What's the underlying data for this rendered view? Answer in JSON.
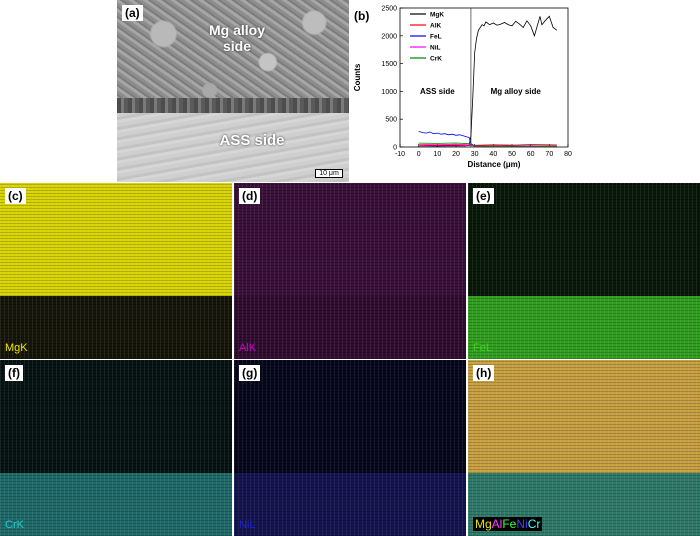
{
  "panel_a": {
    "tag": "(a)",
    "mg_label_line1": "Mg alloy",
    "mg_label_line2": "side",
    "ass_label": "ASS side",
    "scale_bar": "10 μm"
  },
  "chart_data": {
    "type": "line",
    "tag": "(b)",
    "xlabel": "Distance (μm)",
    "ylabel": "Counts",
    "xlim": [
      -10,
      80
    ],
    "ylim": [
      0,
      2500
    ],
    "xticks": [
      -10,
      0,
      10,
      20,
      30,
      40,
      50,
      60,
      70,
      80
    ],
    "yticks": [
      0,
      500,
      1000,
      1500,
      2000,
      2500
    ],
    "interface_x": 28,
    "annotations": [
      {
        "text": "ASS side",
        "x": 10,
        "y": 950
      },
      {
        "text": "Mg alloy side",
        "x": 52,
        "y": 950
      }
    ],
    "legend_position": "top-left",
    "series": [
      {
        "name": "MgK",
        "color": "#000000",
        "x": [
          0,
          5,
          10,
          15,
          20,
          25,
          27,
          28,
          29,
          30,
          31,
          32,
          33,
          34,
          35,
          36,
          38,
          40,
          42,
          44,
          46,
          48,
          50,
          52,
          54,
          56,
          58,
          60,
          62,
          64,
          65,
          66,
          68,
          70,
          72,
          74
        ],
        "y": [
          20,
          22,
          18,
          20,
          21,
          19,
          30,
          200,
          900,
          1700,
          1950,
          2100,
          2150,
          2200,
          2180,
          2250,
          2200,
          2230,
          2190,
          2210,
          2240,
          2200,
          2180,
          2260,
          2210,
          2150,
          2270,
          2180,
          2000,
          2230,
          2350,
          2200,
          2280,
          2350,
          2150,
          2100
        ]
      },
      {
        "name": "AlK",
        "color": "#ff0000",
        "x": [
          0,
          10,
          20,
          27,
          30,
          40,
          50,
          60,
          70,
          74
        ],
        "y": [
          25,
          30,
          28,
          26,
          30,
          40,
          35,
          45,
          40,
          38
        ]
      },
      {
        "name": "FeL",
        "color": "#0000ff",
        "x": [
          0,
          2,
          4,
          6,
          8,
          10,
          12,
          14,
          16,
          18,
          20,
          22,
          24,
          26,
          27,
          28,
          30,
          40,
          50,
          60,
          70,
          74
        ],
        "y": [
          280,
          260,
          250,
          270,
          240,
          250,
          230,
          240,
          220,
          230,
          210,
          220,
          200,
          180,
          170,
          60,
          20,
          18,
          20,
          22,
          18,
          20
        ]
      },
      {
        "name": "NiL",
        "color": "#ff00ff",
        "x": [
          0,
          10,
          20,
          27,
          30,
          40,
          50,
          60,
          70,
          74
        ],
        "y": [
          45,
          42,
          48,
          40,
          15,
          12,
          14,
          13,
          12,
          14
        ]
      },
      {
        "name": "CrK",
        "color": "#008000",
        "x": [
          0,
          10,
          20,
          27,
          30,
          40,
          50,
          60,
          70,
          74
        ],
        "y": [
          70,
          65,
          72,
          60,
          20,
          15,
          16,
          18,
          15,
          17
        ]
      }
    ]
  },
  "maps": [
    {
      "tag": "(c)",
      "caption": "MgK",
      "caption_color": "#f2e600",
      "top_color": "#d9d400",
      "bottom_color": "#151509",
      "top_fraction": 0.64
    },
    {
      "tag": "(d)",
      "caption": "AlK",
      "caption_color": "#d000d0",
      "top_color": "#3a0f3a",
      "bottom_color": "#300c30",
      "top_fraction": 0.64
    },
    {
      "tag": "(e)",
      "caption": "FeL",
      "caption_color": "#40d020",
      "top_color": "#081808",
      "bottom_color": "#2fa01e",
      "top_fraction": 0.64
    },
    {
      "tag": "(f)",
      "caption": "CrK",
      "caption_color": "#20d0d0",
      "top_color": "#061313",
      "bottom_color": "#1e6a6a",
      "top_fraction": 0.64
    },
    {
      "tag": "(g)",
      "caption": "NiL",
      "caption_color": "#2020d0",
      "top_color": "#07071c",
      "bottom_color": "#131350",
      "top_fraction": 0.64
    },
    {
      "tag": "(h)",
      "caption_parts": [
        {
          "text": "Mg",
          "color": "#e6e600"
        },
        {
          "text": "Al",
          "color": "#ff40ff"
        },
        {
          "text": "Fe",
          "color": "#40ff40"
        },
        {
          "text": "Ni",
          "color": "#4040ff"
        },
        {
          "text": "Cr",
          "color": "#40ffff"
        }
      ],
      "top_color": "#c8a040",
      "bottom_color": "#2e7a6a",
      "top_fraction": 0.64
    }
  ]
}
